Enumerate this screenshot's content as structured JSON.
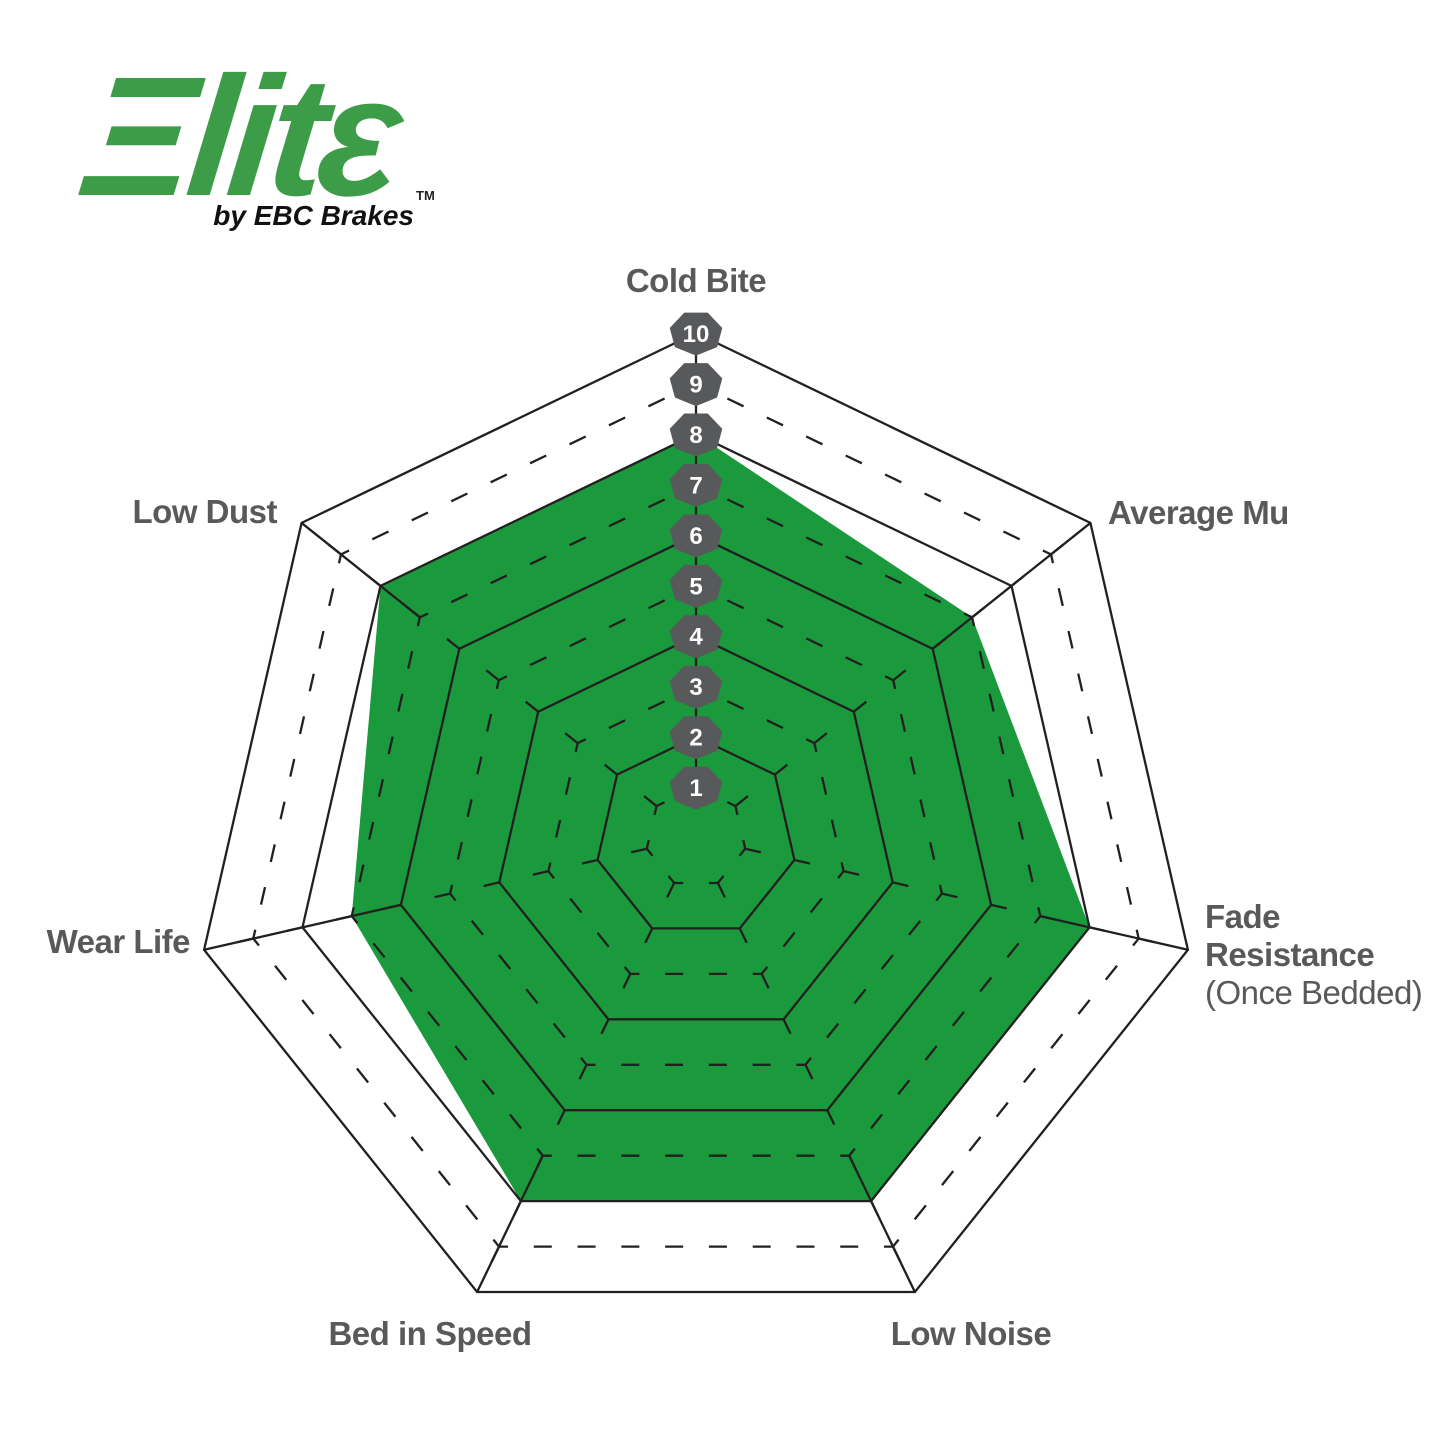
{
  "logo": {
    "brand": "Elite",
    "brand_display": "Ξlitε",
    "trademark": "TM",
    "tagline": "by EBC Brakes"
  },
  "chart_data": {
    "type": "radar",
    "axes": [
      {
        "label": "Cold Bite",
        "value": 8
      },
      {
        "label": "Average Mu",
        "value": 7
      },
      {
        "label": "Fade Resistance",
        "label_lines": [
          "Fade",
          "Resistance"
        ],
        "sublabel": "(Once Bedded)",
        "value": 8
      },
      {
        "label": "Low Noise",
        "value": 8
      },
      {
        "label": "Bed in Speed",
        "value": 8
      },
      {
        "label": "Wear Life",
        "value": 7
      },
      {
        "label": "Low Dust",
        "value": 8
      }
    ],
    "scale": {
      "min": 1,
      "max": 10,
      "tick_labels": [
        "1",
        "2",
        "3",
        "4",
        "5",
        "6",
        "7",
        "8",
        "9",
        "10"
      ]
    },
    "rings": 10,
    "dashed_rings": "odd",
    "legend": "none",
    "grid": "on"
  },
  "style": {
    "fill_green": "#1A9A3C",
    "grid_line": "#231F20",
    "badge_fill": "#58595B",
    "badge_text": "#FFFFFF",
    "label_color": "#58595B",
    "logo_green": "#3D9C48",
    "tagline_color": "#111111",
    "background": "#FFFFFF"
  }
}
